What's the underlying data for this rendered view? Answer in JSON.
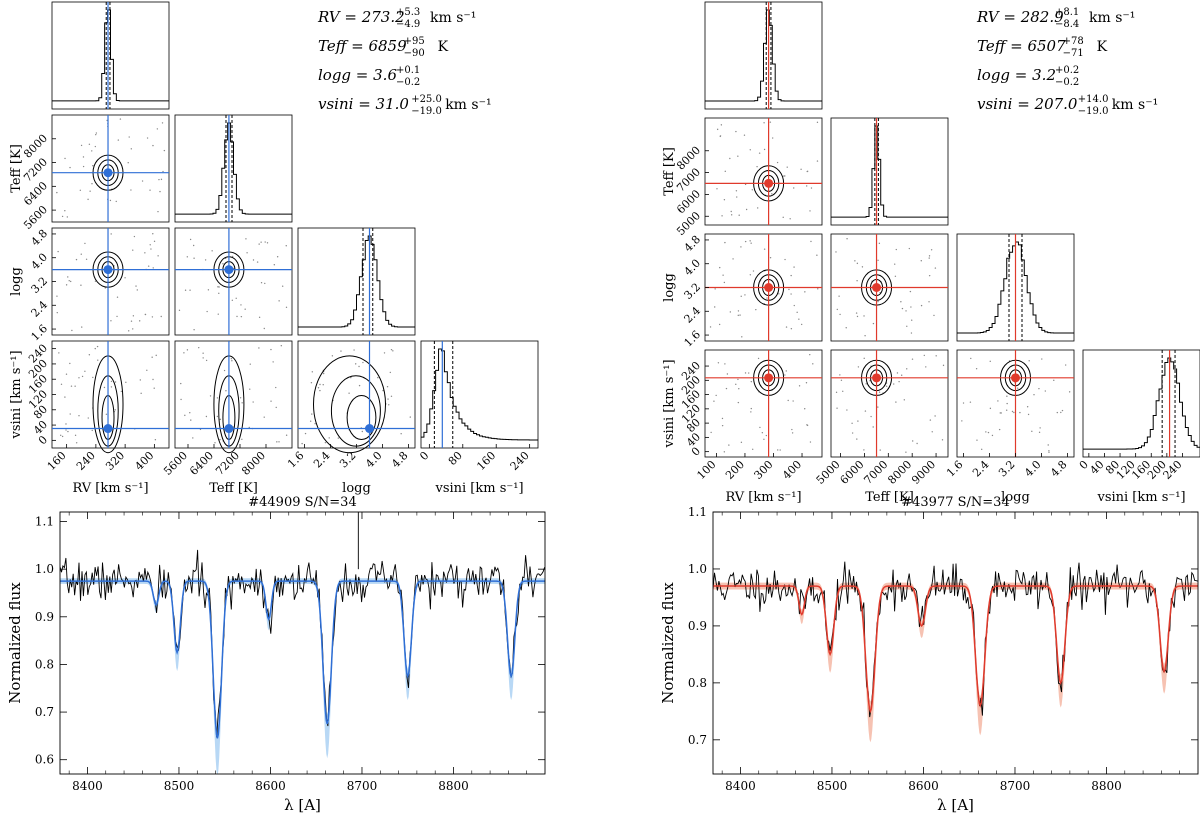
{
  "chart_data": [
    {
      "type": "corner",
      "star": "#44909",
      "accent": "#2f6fd6",
      "fill": "#b8d8f5",
      "params": [
        {
          "name": "RV",
          "value": 273.2,
          "plus": 5.3,
          "minus": 4.9,
          "unit": "km s⁻¹"
        },
        {
          "name": "Teff",
          "value": 6859,
          "plus": 95,
          "minus": 90,
          "unit": "K"
        },
        {
          "name": "logg",
          "value": 3.6,
          "plus": 0.1,
          "minus": 0.2,
          "unit": ""
        },
        {
          "name": "vsini",
          "value": 31.0,
          "plus": 25.0,
          "minus": 19.0,
          "unit": "km s⁻¹"
        }
      ],
      "param_text": [
        {
          "label": "RV = 273.2",
          "sup": "+5.3",
          "sub": "−4.9",
          "unit": "km s⁻¹"
        },
        {
          "label": "Teff = 6859",
          "sup": "+95",
          "sub": "−90",
          "unit": "K"
        },
        {
          "label": "logg = 3.6",
          "sup": "+0.1",
          "sub": "−0.2",
          "unit": ""
        },
        {
          "label": "vsini = 31.0",
          "sup": "+25.0",
          "sub": "−19.0",
          "unit": "km s⁻¹"
        }
      ],
      "axis_labels": [
        "RV [km s⁻¹]",
        "Teff [K]",
        "logg",
        "vsini  [km s⁻¹]"
      ],
      "ranges": [
        [
          120,
          440
        ],
        [
          5200,
          8800
        ],
        [
          1.4,
          5.0
        ],
        [
          -20,
          260
        ]
      ],
      "ticks": [
        [
          "160",
          "240",
          "320",
          "400"
        ],
        [
          "5600",
          "6400",
          "7200",
          "8000"
        ],
        [
          "1.6",
          "2.4",
          "3.2",
          "4.0",
          "4.8"
        ],
        [
          "0",
          "80",
          "160",
          "240"
        ]
      ],
      "tick_values": [
        [
          160,
          240,
          320,
          400
        ],
        [
          5600,
          6400,
          7200,
          8000
        ],
        [
          1.6,
          2.4,
          3.2,
          4.0,
          4.8
        ],
        [
          0,
          80,
          160,
          240
        ]
      ],
      "y_ticks": [
        null,
        [
          "5600",
          "6400",
          "7200",
          "8000"
        ],
        [
          "1.6",
          "2.4",
          "3.2",
          "4.0",
          "4.8"
        ],
        [
          "0",
          "40",
          "80",
          "120",
          "160",
          "200",
          "240"
        ]
      ],
      "y_tick_values": [
        null,
        [
          5600,
          6400,
          7200,
          8000
        ],
        [
          1.6,
          2.4,
          3.2,
          4.0,
          4.8
        ],
        [
          0,
          40,
          80,
          120,
          160,
          200,
          240
        ]
      ]
    },
    {
      "type": "corner",
      "star": "#43977",
      "accent": "#e03a2c",
      "fill": "#f6c2b2",
      "params": [
        {
          "name": "RV",
          "value": 282.9,
          "plus": 8.1,
          "minus": 8.4,
          "unit": "km s⁻¹"
        },
        {
          "name": "Teff",
          "value": 6507,
          "plus": 78,
          "minus": 71,
          "unit": "K"
        },
        {
          "name": "logg",
          "value": 3.2,
          "plus": 0.2,
          "minus": 0.2,
          "unit": ""
        },
        {
          "name": "vsini",
          "value": 207.0,
          "plus": 14.0,
          "minus": 19.0,
          "unit": "km s⁻¹"
        }
      ],
      "param_text": [
        {
          "label": "RV = 282.9",
          "sup": "+8.1",
          "sub": "−8.4",
          "unit": "km s⁻¹"
        },
        {
          "label": "Teff = 6507",
          "sup": "+78",
          "sub": "−71",
          "unit": "K"
        },
        {
          "label": "logg = 3.2",
          "sup": "+0.2",
          "sub": "−0.2",
          "unit": ""
        },
        {
          "label": "vsini = 207.0",
          "sup": "+14.0",
          "sub": "−19.0",
          "unit": "km s⁻¹"
        }
      ],
      "axis_labels": [
        "RV [km s⁻¹]",
        "Teff [K]",
        "logg",
        "vsini  [km s⁻¹]"
      ],
      "ranges": [
        [
          60,
          470
        ],
        [
          4600,
          9500
        ],
        [
          1.4,
          5.0
        ],
        [
          -15,
          285
        ]
      ],
      "ticks": [
        [
          "100",
          "200",
          "300",
          "400"
        ],
        [
          "5000",
          "6000",
          "7000",
          "8000",
          "9000"
        ],
        [
          "1.6",
          "2.4",
          "3.2",
          "4.0",
          "4.8"
        ],
        [
          "0",
          "40",
          "80",
          "120",
          "160",
          "200",
          "240"
        ]
      ],
      "tick_values": [
        [
          100,
          200,
          300,
          400
        ],
        [
          5000,
          6000,
          7000,
          8000,
          9000
        ],
        [
          1.6,
          2.4,
          3.2,
          4.0,
          4.8
        ],
        [
          0,
          40,
          80,
          120,
          160,
          200,
          240
        ]
      ],
      "y_ticks": [
        null,
        [
          "5000",
          "6000",
          "7000",
          "8000"
        ],
        [
          "1.6",
          "2.4",
          "3.2",
          "4.0",
          "4.8"
        ],
        [
          "0",
          "40",
          "80",
          "120",
          "160",
          "200",
          "240"
        ]
      ],
      "y_tick_values": [
        null,
        [
          5000,
          6000,
          7000,
          8000
        ],
        [
          1.6,
          2.4,
          3.2,
          4.0,
          4.8
        ],
        [
          0,
          40,
          80,
          120,
          160,
          200,
          240
        ]
      ]
    },
    {
      "type": "line",
      "title": "#44909 S/N=34",
      "xlabel": "λ [A]",
      "ylabel": "Normalized flux",
      "xlim": [
        8370,
        8900
      ],
      "ylim": [
        0.57,
        1.12
      ],
      "x_ticks": [
        8400,
        8500,
        8600,
        8700,
        8800
      ],
      "y_ticks": [
        0.6,
        0.7,
        0.8,
        0.9,
        1.0,
        1.1
      ],
      "x_tick_labels": [
        "8400",
        "8500",
        "8600",
        "8700",
        "8800"
      ],
      "y_tick_labels": [
        "0.6",
        "0.7",
        "0.8",
        "0.9",
        "1.0",
        "1.1"
      ],
      "model_color": "#2f6fd6",
      "band_color": "#b8d8f5",
      "continuum": 0.975,
      "noise": 0.035,
      "seed": 7,
      "lines": [
        {
          "center": 8475,
          "depth": 0.05,
          "width": 3
        },
        {
          "center": 8498,
          "depth": 0.15,
          "width": 3.5
        },
        {
          "center": 8542,
          "depth": 0.33,
          "width": 4.5
        },
        {
          "center": 8598,
          "depth": 0.08,
          "width": 3
        },
        {
          "center": 8662,
          "depth": 0.3,
          "width": 4.5
        },
        {
          "center": 8750,
          "depth": 0.2,
          "width": 4
        },
        {
          "center": 8863,
          "depth": 0.2,
          "width": 4
        }
      ],
      "spikes": [
        {
          "x": 8696,
          "y": 1.12
        }
      ]
    },
    {
      "type": "line",
      "title": "#43977 S/N=34",
      "xlabel": "λ [A]",
      "ylabel": "Normalized flux",
      "xlim": [
        8370,
        8900
      ],
      "ylim": [
        0.64,
        1.1
      ],
      "x_ticks": [
        8400,
        8500,
        8600,
        8700,
        8800
      ],
      "y_ticks": [
        0.7,
        0.8,
        0.9,
        1.0,
        1.1
      ],
      "x_tick_labels": [
        "8400",
        "8500",
        "8600",
        "8700",
        "8800"
      ],
      "y_tick_labels": [
        "0.7",
        "0.8",
        "0.9",
        "1.0",
        "1.1"
      ],
      "model_color": "#e03a2c",
      "band_color": "#f6c2b2",
      "continuum": 0.97,
      "noise": 0.03,
      "seed": 11,
      "lines": [
        {
          "center": 8467,
          "depth": 0.05,
          "width": 3
        },
        {
          "center": 8498,
          "depth": 0.12,
          "width": 4
        },
        {
          "center": 8542,
          "depth": 0.22,
          "width": 5
        },
        {
          "center": 8598,
          "depth": 0.07,
          "width": 4
        },
        {
          "center": 8662,
          "depth": 0.21,
          "width": 5
        },
        {
          "center": 8750,
          "depth": 0.17,
          "width": 4.5
        },
        {
          "center": 8863,
          "depth": 0.15,
          "width": 4.5
        }
      ],
      "spikes": []
    }
  ]
}
